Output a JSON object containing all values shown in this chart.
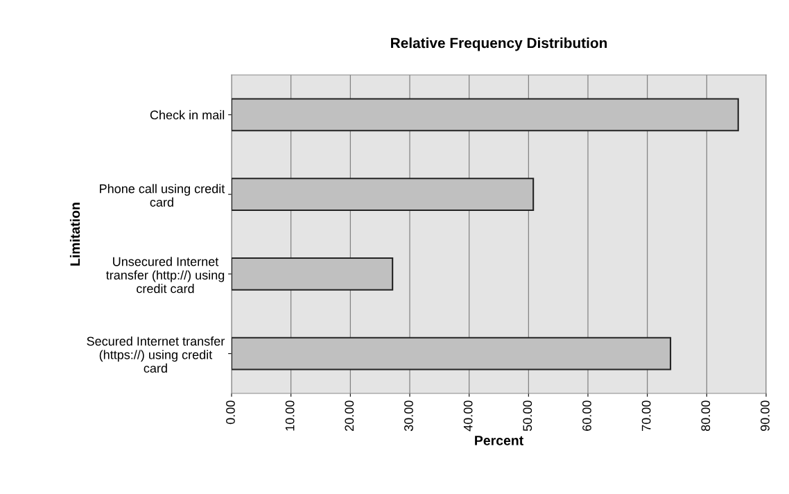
{
  "chart_data": {
    "type": "bar",
    "orientation": "horizontal",
    "title": "Relative Frequency Distribution",
    "xlabel": "Percent",
    "ylabel": "Limitation",
    "categories": [
      "Check in mail",
      "Phone call using credit card",
      "Unsecured Internet transfer (http://) using credit card",
      "Secured Internet transfer (https://) using credit card"
    ],
    "values": [
      85.3,
      50.8,
      27.1,
      73.9
    ],
    "color": "#c0c0c0",
    "xlim": [
      0,
      90
    ],
    "xticks": [
      {
        "value": 0,
        "label": "0.00"
      },
      {
        "value": 10,
        "label": "10.00"
      },
      {
        "value": 20,
        "label": "20.00"
      },
      {
        "value": 30,
        "label": "30.00"
      },
      {
        "value": 40,
        "label": "40.00"
      },
      {
        "value": 50,
        "label": "50.00"
      },
      {
        "value": 60,
        "label": "60.00"
      },
      {
        "value": 70,
        "label": "70.00"
      },
      {
        "value": 80,
        "label": "80.00"
      },
      {
        "value": 90,
        "label": "90.00"
      }
    ],
    "grid": "x"
  }
}
